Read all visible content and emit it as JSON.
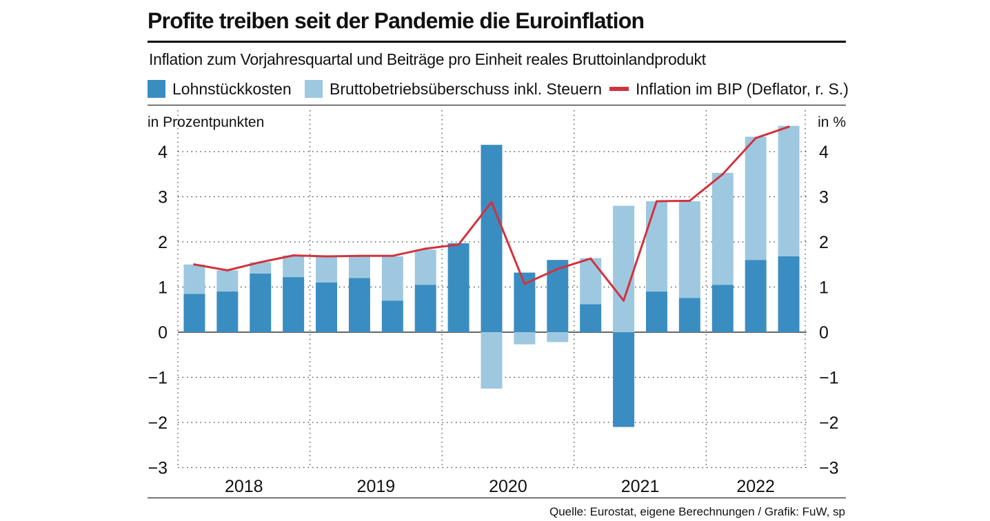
{
  "title": "Profite treiben seit der Pandemie die Euroinflation",
  "subtitle": "Inflation zum Vorjahresquartal und Beiträge pro Einheit reales Bruttoinlandprodukt",
  "source": "Quelle: Eurostat, eigene Berechnungen / Grafik: FuW, sp",
  "colors": {
    "lohn": "#3a8dc1",
    "brutto": "#9ec8e0",
    "inflation": "#d2323c",
    "grid": "#333333"
  },
  "legend": [
    {
      "label": "Lohnstückkosten",
      "kind": "bar",
      "color": "#3a8dc1"
    },
    {
      "label": "Bruttobetriebsüberschuss inkl. Steuern",
      "kind": "bar",
      "color": "#9ec8e0"
    },
    {
      "label": "Inflation im BIP (Deflator, r. S.)",
      "kind": "line",
      "color": "#d2323c"
    }
  ],
  "chart_data": {
    "type": "bar",
    "stacked": true,
    "ylabel_left": "in Prozentpunkten",
    "ylabel_right": "in %",
    "ylim": [
      -3,
      4.5
    ],
    "yticks": [
      4,
      3,
      2,
      1,
      0,
      -1,
      -2,
      -3
    ],
    "ytick_labels": [
      "4",
      "3",
      "2",
      "1",
      "0",
      "−1",
      "−2",
      "−3"
    ],
    "years": [
      "2018",
      "2019",
      "2020",
      "2021",
      "2022"
    ],
    "quarters_per_year": 4,
    "categories": [
      "2018 Q1",
      "2018 Q2",
      "2018 Q3",
      "2018 Q4",
      "2019 Q1",
      "2019 Q2",
      "2019 Q3",
      "2019 Q4",
      "2020 Q1",
      "2020 Q2",
      "2020 Q3",
      "2020 Q4",
      "2021 Q1",
      "2021 Q2",
      "2021 Q3",
      "2021 Q4",
      "2022 Q1",
      "2022 Q2",
      "2022 Q3"
    ],
    "series": [
      {
        "name": "Lohnstückkosten",
        "type": "bar",
        "values": [
          0.85,
          0.9,
          1.3,
          1.22,
          1.1,
          1.2,
          0.7,
          1.05,
          1.97,
          4.15,
          1.32,
          1.6,
          0.62,
          -2.1,
          0.9,
          0.76,
          1.05,
          1.6,
          1.68
        ]
      },
      {
        "name": "Bruttobetriebsüberschuss inkl. Steuern",
        "type": "bar",
        "values": [
          0.65,
          0.47,
          0.25,
          0.48,
          0.58,
          0.48,
          0.98,
          0.78,
          0.0,
          -1.25,
          -0.27,
          -0.22,
          1.02,
          2.8,
          2.0,
          2.14,
          2.48,
          2.73,
          2.89
        ]
      },
      {
        "name": "Inflation im BIP (Deflator, r. S.)",
        "type": "line",
        "values": [
          1.5,
          1.37,
          1.55,
          1.7,
          1.68,
          1.69,
          1.69,
          1.85,
          1.94,
          2.88,
          1.07,
          1.4,
          1.63,
          0.7,
          2.9,
          2.91,
          3.5,
          4.3,
          4.55
        ]
      }
    ],
    "grid": true
  }
}
